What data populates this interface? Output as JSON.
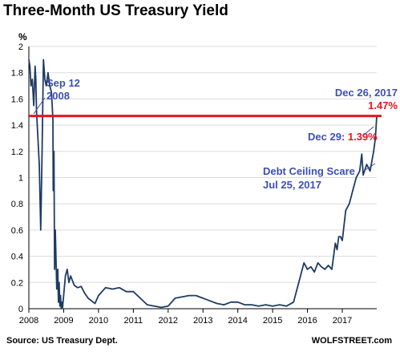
{
  "header": {
    "title": "Three-Month US Treasury Yield"
  },
  "footer": {
    "source": "Source: US Treasury Dept.",
    "brand": "WOLFSTREET.com"
  },
  "colors": {
    "line": "#1f3b64",
    "reference_line": "#e8141c",
    "annotation_blue": "#3d4fb5",
    "annotation_red": "#e8141c",
    "axis": "#000000"
  },
  "annotations": {
    "sep12_line1": "Sep 12",
    "sep12_line2": "2008",
    "dec26": "Dec 26, 2017",
    "dec26_value": "1.47%",
    "dec29": "Dec 29: ",
    "dec29_value": "1.39%",
    "debt_line1": "Debt Ceiling Scare",
    "debt_line2": "Jul 25, 2017"
  },
  "chart_data": {
    "type": "line",
    "title": "Three-Month US Treasury Yield",
    "ylabel": "%",
    "xlabel": "",
    "xlim": [
      2008.0,
      2017.99
    ],
    "ylim": [
      0,
      2
    ],
    "x_ticks": [
      "2008",
      "2009",
      "2010",
      "2011",
      "2012",
      "2013",
      "2014",
      "2015",
      "2016",
      "2017"
    ],
    "y_ticks": [
      "0",
      "0.2",
      "0.4",
      "0.6",
      "0.8",
      "1",
      "1.2",
      "1.4",
      "1.6",
      "1.8",
      "2"
    ],
    "reference_line": {
      "y": 1.47
    },
    "series": [
      {
        "x": [
          2008.0,
          2008.03,
          2008.06,
          2008.1,
          2008.14,
          2008.18,
          2008.2,
          2008.22,
          2008.25,
          2008.3,
          2008.34,
          2008.38,
          2008.42,
          2008.46,
          2008.5,
          2008.55,
          2008.6,
          2008.65,
          2008.69,
          2008.7,
          2008.72,
          2008.74,
          2008.76,
          2008.8,
          2008.83,
          2008.85,
          2008.87,
          2008.89,
          2008.91,
          2008.93,
          2008.95,
          2008.97,
          2009.0,
          2009.05,
          2009.1,
          2009.15,
          2009.2,
          2009.3,
          2009.4,
          2009.5,
          2009.6,
          2009.7,
          2009.8,
          2009.9,
          2010.0,
          2010.2,
          2010.4,
          2010.6,
          2010.8,
          2011.0,
          2011.2,
          2011.4,
          2011.6,
          2011.8,
          2012.0,
          2012.2,
          2012.4,
          2012.6,
          2012.8,
          2013.0,
          2013.2,
          2013.4,
          2013.6,
          2013.8,
          2014.0,
          2014.2,
          2014.4,
          2014.6,
          2014.8,
          2015.0,
          2015.2,
          2015.4,
          2015.6,
          2015.8,
          2015.9,
          2016.0,
          2016.1,
          2016.2,
          2016.3,
          2016.4,
          2016.5,
          2016.6,
          2016.7,
          2016.8,
          2016.85,
          2016.9,
          2016.95,
          2017.0,
          2017.1,
          2017.2,
          2017.25,
          2017.3,
          2017.4,
          2017.5,
          2017.56,
          2017.6,
          2017.7,
          2017.8,
          2017.9,
          2017.95,
          2017.99
        ],
        "y": [
          1.9,
          1.85,
          1.7,
          1.75,
          1.55,
          1.85,
          1.75,
          1.5,
          1.35,
          1.1,
          0.6,
          1.2,
          1.9,
          1.75,
          1.7,
          1.8,
          1.7,
          1.65,
          1.45,
          0.9,
          1.2,
          0.3,
          0.6,
          0.15,
          0.3,
          0.05,
          0.2,
          0.02,
          0.1,
          0.0,
          0.05,
          0.01,
          0.1,
          0.25,
          0.3,
          0.2,
          0.25,
          0.18,
          0.16,
          0.17,
          0.12,
          0.08,
          0.06,
          0.04,
          0.1,
          0.16,
          0.15,
          0.16,
          0.13,
          0.13,
          0.08,
          0.03,
          0.02,
          0.01,
          0.02,
          0.08,
          0.09,
          0.1,
          0.1,
          0.08,
          0.06,
          0.04,
          0.03,
          0.05,
          0.05,
          0.03,
          0.03,
          0.02,
          0.03,
          0.02,
          0.03,
          0.02,
          0.05,
          0.25,
          0.35,
          0.3,
          0.32,
          0.28,
          0.35,
          0.32,
          0.3,
          0.33,
          0.3,
          0.5,
          0.45,
          0.55,
          0.55,
          0.52,
          0.75,
          0.8,
          0.85,
          0.9,
          1.0,
          1.05,
          1.18,
          1.02,
          1.1,
          1.05,
          1.2,
          1.3,
          1.47
        ]
      }
    ]
  }
}
